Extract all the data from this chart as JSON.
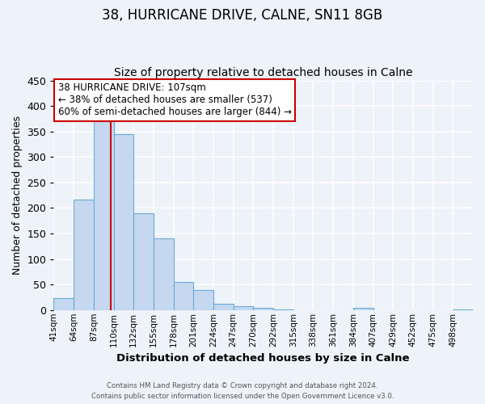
{
  "title1": "38, HURRICANE DRIVE, CALNE, SN11 8GB",
  "title2": "Size of property relative to detached houses in Calne",
  "xlabel": "Distribution of detached houses by size in Calne",
  "ylabel": "Number of detached properties",
  "bin_labels": [
    "41sqm",
    "64sqm",
    "87sqm",
    "110sqm",
    "132sqm",
    "155sqm",
    "178sqm",
    "201sqm",
    "224sqm",
    "247sqm",
    "270sqm",
    "292sqm",
    "315sqm",
    "338sqm",
    "361sqm",
    "384sqm",
    "407sqm",
    "429sqm",
    "452sqm",
    "475sqm",
    "498sqm"
  ],
  "bar_heights": [
    23,
    217,
    375,
    345,
    190,
    141,
    55,
    39,
    12,
    7,
    4,
    2,
    0,
    0,
    0,
    4,
    0,
    0,
    0,
    0,
    2
  ],
  "bar_color": "#c5d8f0",
  "bar_edge_color": "#6aaad4",
  "vline_x": 107,
  "bin_edges_values": [
    41,
    64,
    87,
    110,
    132,
    155,
    178,
    201,
    224,
    247,
    270,
    292,
    315,
    338,
    361,
    384,
    407,
    429,
    452,
    475,
    498
  ],
  "annotation_title": "38 HURRICANE DRIVE: 107sqm",
  "annotation_line1": "← 38% of detached houses are smaller (537)",
  "annotation_line2": "60% of semi-detached houses are larger (844) →",
  "annotation_box_color": "#ffffff",
  "annotation_box_edge_color": "#cc0000",
  "vline_color": "#cc0000",
  "ylim": [
    0,
    450
  ],
  "yticks": [
    0,
    50,
    100,
    150,
    200,
    250,
    300,
    350,
    400,
    450
  ],
  "footer1": "Contains HM Land Registry data © Crown copyright and database right 2024.",
  "footer2": "Contains public sector information licensed under the Open Government Licence v3.0.",
  "bg_color": "#eef2f9",
  "grid_color": "#ffffff",
  "title1_fontsize": 12,
  "title2_fontsize": 10
}
